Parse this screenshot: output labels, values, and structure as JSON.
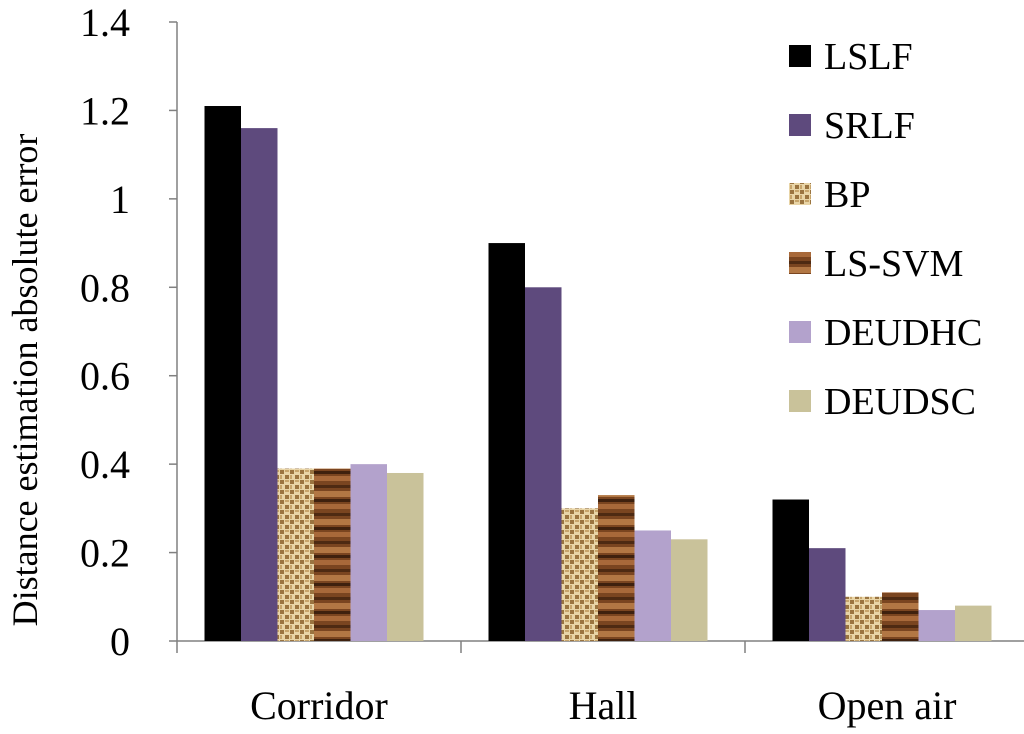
{
  "chart_data": {
    "type": "bar",
    "title": "",
    "xlabel": "",
    "ylabel": "Distance estimation absolute error",
    "ylim": [
      0,
      1.4
    ],
    "yticks": [
      "0",
      "0.2",
      "0.4",
      "0.6",
      "0.8",
      "1",
      "1.2",
      "1.4"
    ],
    "categories": [
      "Corridor",
      "Hall",
      "Open air"
    ],
    "legend_position": "right",
    "series": [
      {
        "name": "LSLF",
        "values": [
          1.21,
          0.9,
          0.32
        ],
        "color": "#000000",
        "pattern": "solid"
      },
      {
        "name": "SRLF",
        "values": [
          1.16,
          0.8,
          0.21
        ],
        "color": "#5e4a7d",
        "pattern": "solid"
      },
      {
        "name": "BP",
        "values": [
          0.39,
          0.3,
          0.1
        ],
        "color": "#c9a36a",
        "pattern": "weave"
      },
      {
        "name": "LS-SVM",
        "values": [
          0.39,
          0.33,
          0.11
        ],
        "color": "#7a4a28",
        "pattern": "wood"
      },
      {
        "name": "DEUDHC",
        "values": [
          0.4,
          0.25,
          0.07
        ],
        "color": "#b3a2cc",
        "pattern": "solid"
      },
      {
        "name": "DEUDSC",
        "values": [
          0.38,
          0.23,
          0.08
        ],
        "color": "#c9c29a",
        "pattern": "solid"
      }
    ]
  }
}
